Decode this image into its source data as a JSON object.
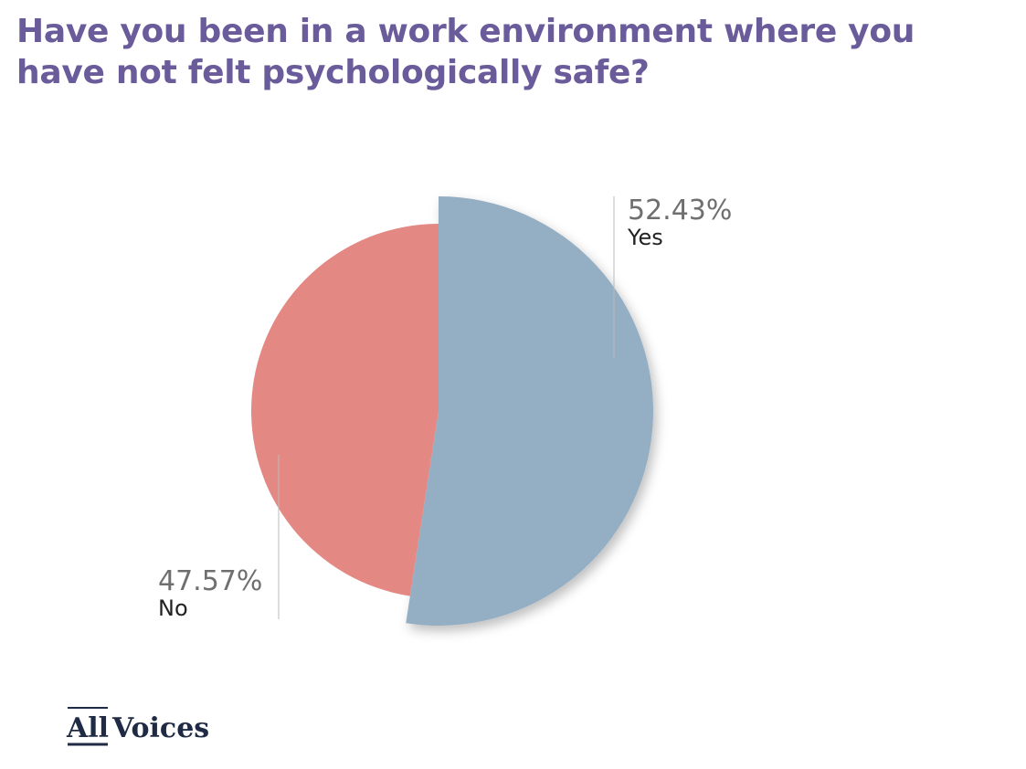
{
  "chart_data": {
    "type": "pie",
    "title": "Have you been in a work environment where you have not felt psychologically safe?",
    "categories": [
      "Yes",
      "No"
    ],
    "values": [
      52.43,
      47.57
    ],
    "value_labels": [
      "52.43%",
      "47.57%"
    ],
    "colors": [
      "#94aec4",
      "#e38883"
    ]
  },
  "logo": {
    "left": "All",
    "right": "Voices"
  }
}
